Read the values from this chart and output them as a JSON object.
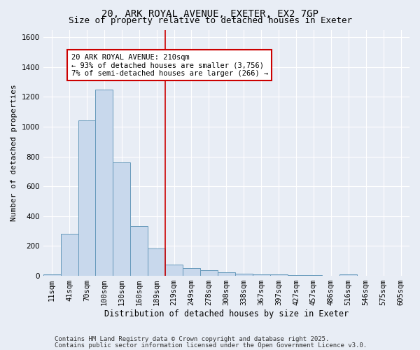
{
  "title1": "20, ARK ROYAL AVENUE, EXETER, EX2 7GP",
  "title2": "Size of property relative to detached houses in Exeter",
  "xlabel": "Distribution of detached houses by size in Exeter",
  "ylabel": "Number of detached properties",
  "categories": [
    "11sqm",
    "41sqm",
    "70sqm",
    "100sqm",
    "130sqm",
    "160sqm",
    "189sqm",
    "219sqm",
    "249sqm",
    "278sqm",
    "308sqm",
    "338sqm",
    "367sqm",
    "397sqm",
    "427sqm",
    "457sqm",
    "486sqm",
    "516sqm",
    "546sqm",
    "575sqm",
    "605sqm"
  ],
  "values": [
    10,
    280,
    1040,
    1250,
    760,
    335,
    185,
    75,
    50,
    38,
    25,
    15,
    10,
    10,
    5,
    5,
    0,
    10,
    0,
    0,
    0
  ],
  "bar_color": "#c8d8ec",
  "bar_edge_color": "#6699bb",
  "red_line_index": 7,
  "annotation_text": "20 ARK ROYAL AVENUE: 210sqm\n← 93% of detached houses are smaller (3,756)\n7% of semi-detached houses are larger (266) →",
  "annotation_box_color": "#ffffff",
  "annotation_box_edge_color": "#cc0000",
  "footer1": "Contains HM Land Registry data © Crown copyright and database right 2025.",
  "footer2": "Contains public sector information licensed under the Open Government Licence v3.0.",
  "ylim": [
    0,
    1650
  ],
  "yticks": [
    0,
    200,
    400,
    600,
    800,
    1000,
    1200,
    1400,
    1600
  ],
  "fig_bg_color": "#e8edf5",
  "plot_bg_color": "#e8edf5",
  "grid_color": "#ffffff",
  "title1_fontsize": 10,
  "title2_fontsize": 9,
  "xlabel_fontsize": 8.5,
  "ylabel_fontsize": 8,
  "tick_fontsize": 7.5,
  "annotation_fontsize": 7.5,
  "footer_fontsize": 6.5
}
